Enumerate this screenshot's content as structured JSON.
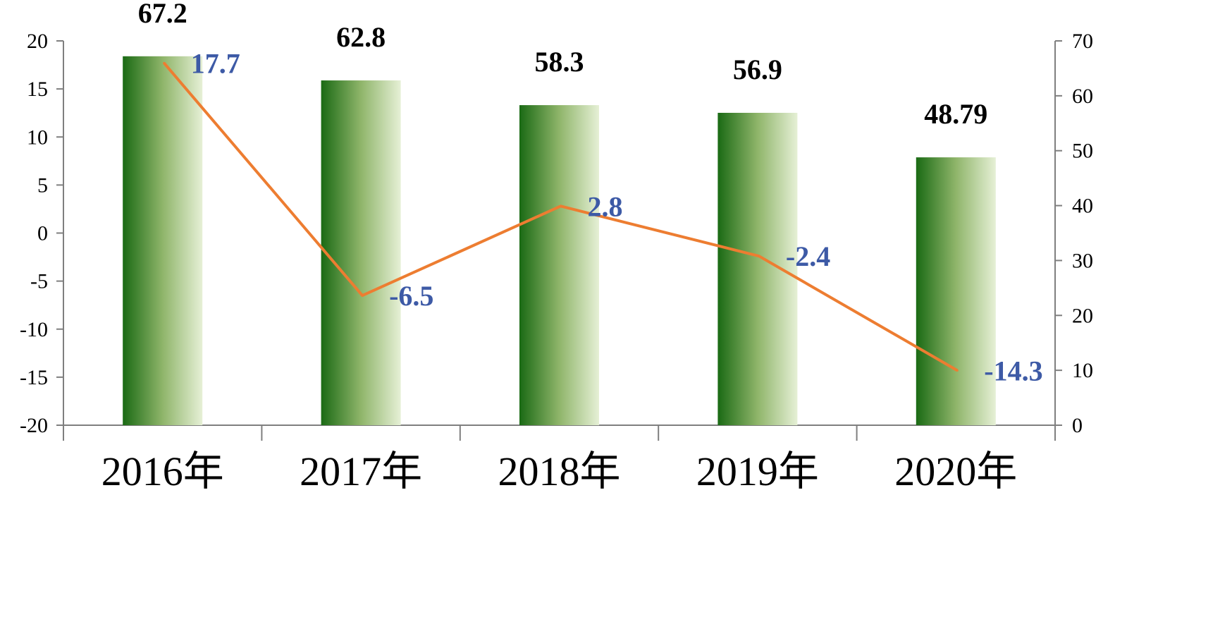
{
  "chart_data": {
    "type": "bar",
    "categories": [
      "2016年",
      "2017年",
      "2018年",
      "2019年",
      "2020年"
    ],
    "series": [
      {
        "type": "bar",
        "axis": "right",
        "values": [
          67.2,
          62.8,
          58.3,
          56.9,
          48.79
        ],
        "labels": [
          "67.2",
          "62.8",
          "58.3",
          "56.9",
          "48.79"
        ]
      },
      {
        "type": "line",
        "axis": "left",
        "values": [
          17.7,
          -6.5,
          2.8,
          -2.4,
          -14.3
        ],
        "labels": [
          "17.7",
          "-6.5",
          "2.8",
          "-2.4",
          "-14.3"
        ]
      }
    ],
    "y_left": {
      "min": -20,
      "max": 20,
      "step": 5,
      "tick_labels": [
        "-20",
        "-15",
        "-10",
        "-5",
        "0",
        "5",
        "10",
        "15",
        "20"
      ]
    },
    "y_right": {
      "min": 0,
      "max": 70,
      "step": 10,
      "tick_labels": [
        "0",
        "10",
        "20",
        "30",
        "40",
        "50",
        "60",
        "70"
      ]
    },
    "title": "",
    "xlabel": "",
    "ylabel": "",
    "grid": false,
    "legend": "none",
    "colors": {
      "bar_dark": "#1a6a14",
      "bar_mid": "#8fb56a",
      "bar_light": "#e6f0d6",
      "line": "#ed7d31",
      "line_label": "#3d5aa6",
      "bar_label": "#000000",
      "axis": "#7f7f7f"
    }
  }
}
